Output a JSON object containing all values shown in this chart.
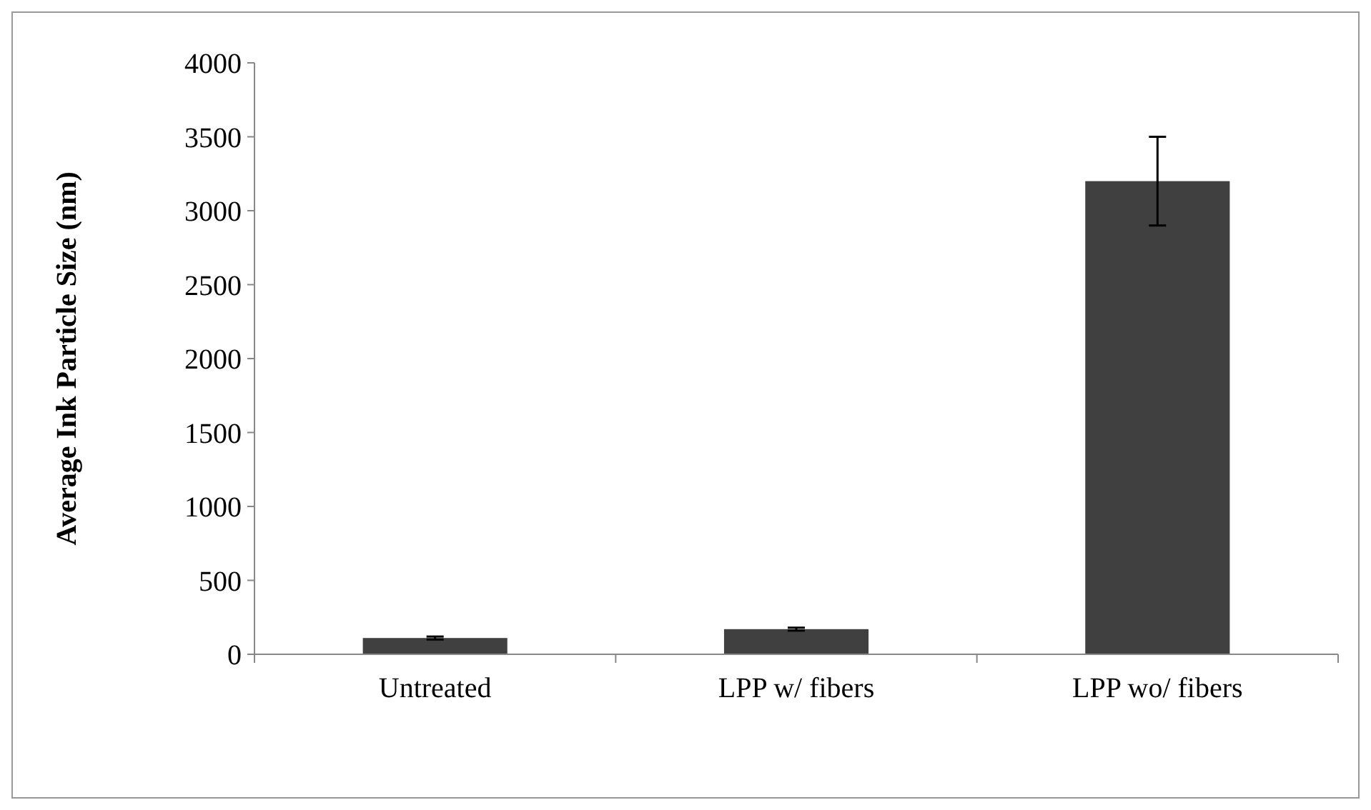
{
  "chart_data": {
    "type": "bar",
    "ylabel": "Average Ink Particle Size (nm)",
    "categories": [
      "Untreated",
      "LPP w/ fibers",
      "LPP wo/ fibers"
    ],
    "values": [
      110,
      170,
      3200
    ],
    "errors": [
      10,
      10,
      300
    ],
    "color": "#404040",
    "ylim": [
      0,
      4000
    ],
    "yticks": [
      0,
      500,
      1000,
      1500,
      2000,
      2500,
      3000,
      3500,
      4000
    ],
    "grid": false
  }
}
